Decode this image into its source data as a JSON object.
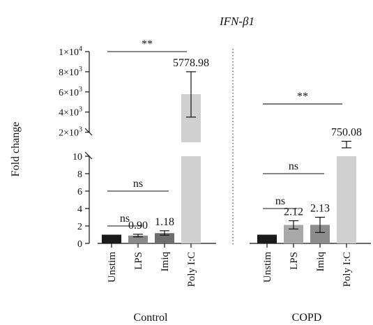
{
  "chart_data": {
    "type": "bar",
    "title": "IFN-β1",
    "ylabel": "Fold change",
    "y_axis_break": {
      "lower_range": [
        0,
        10
      ],
      "upper_range": [
        1000,
        10000
      ],
      "lower_ticks": [
        "0",
        "2",
        "4",
        "6",
        "8",
        "10"
      ],
      "upper_ticks": [
        {
          "value": 2000,
          "mantissa": "2×10",
          "exp": "3"
        },
        {
          "value": 4000,
          "mantissa": "4×10",
          "exp": "3"
        },
        {
          "value": 6000,
          "mantissa": "6×10",
          "exp": "3"
        },
        {
          "value": 8000,
          "mantissa": "8×10",
          "exp": "3"
        },
        {
          "value": 10000,
          "mantissa": "1×10",
          "exp": "4"
        }
      ]
    },
    "categories": [
      "Unstim",
      "LPS",
      "Imiq",
      "Poly I:C"
    ],
    "groups": [
      {
        "name": "Control",
        "values": [
          1.0,
          0.9,
          1.18,
          5778.98
        ],
        "error_low": [
          1.0,
          0.75,
          0.95,
          3500
        ],
        "error_high": [
          1.0,
          1.05,
          1.45,
          8000
        ],
        "labels": [
          "",
          "0.90",
          "1.18",
          "5778.98"
        ],
        "colors": [
          "#1a1a1a",
          "#8a8a8a",
          "#6e6e6e",
          "#d0d0d0"
        ]
      },
      {
        "name": "COPD",
        "values": [
          1.0,
          2.12,
          2.13,
          750.08
        ],
        "error_low": [
          1.0,
          1.65,
          1.25,
          450
        ],
        "error_high": [
          1.0,
          2.6,
          3.0,
          1100
        ],
        "labels": [
          "",
          "2.12",
          "2.13",
          "750.08"
        ],
        "colors": [
          "#1a1a1a",
          "#a8a8a8",
          "#8c8c8c",
          "#d0d0d0"
        ]
      }
    ],
    "significance": [
      {
        "group": 0,
        "from": 0,
        "to": 1,
        "level": 2,
        "label": "ns"
      },
      {
        "group": 0,
        "from": 0,
        "to": 2,
        "level": 6,
        "label": "ns"
      },
      {
        "group": 0,
        "from": 0,
        "to": 3,
        "level": 10000,
        "label": "**"
      },
      {
        "group": 1,
        "from": 0,
        "to": 1,
        "level": 4,
        "label": "ns"
      },
      {
        "group": 1,
        "from": 0,
        "to": 2,
        "level": 8,
        "label": "ns"
      },
      {
        "group": 1,
        "from": 0,
        "to": 3,
        "level": 4800,
        "label": "**"
      }
    ]
  }
}
